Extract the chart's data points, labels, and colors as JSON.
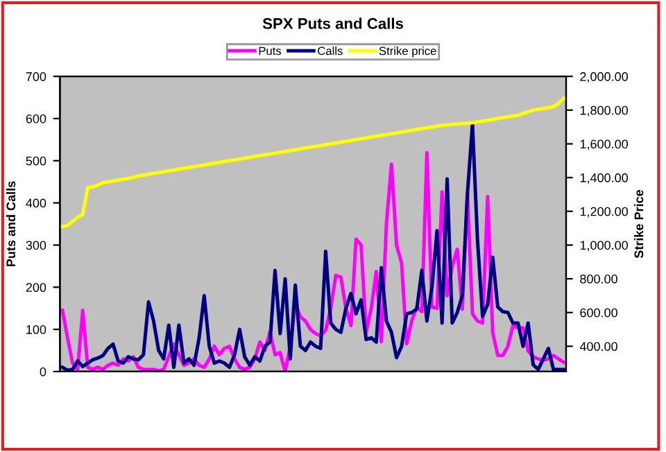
{
  "chart_data": {
    "type": "line",
    "title": "SPX Puts and Calls",
    "ylabel": "Puts and Calls",
    "y2label": "Strike Price",
    "categories": [
      null,
      null,
      null,
      null,
      null,
      null,
      null,
      null,
      null,
      null,
      null,
      null,
      null,
      null,
      null,
      null,
      null,
      null,
      null,
      null,
      null,
      null,
      null,
      null,
      null,
      null,
      null,
      null,
      null,
      null,
      null,
      null,
      null,
      null,
      null,
      null,
      null,
      null,
      null,
      null,
      null,
      null,
      null,
      null,
      null,
      null,
      null,
      null,
      null,
      null,
      null,
      null,
      null,
      null,
      null,
      null,
      null,
      null,
      null,
      null,
      null,
      null,
      null,
      null,
      null,
      null,
      null,
      null,
      null,
      null,
      null,
      null,
      null,
      null,
      null,
      null,
      null,
      null,
      null,
      null,
      null,
      null,
      null,
      null,
      null,
      null,
      null,
      null,
      null,
      null,
      null,
      null,
      null,
      null,
      null,
      null,
      null,
      null,
      null,
      null
    ],
    "series": [
      {
        "name": "Puts",
        "color": "#ff00ff",
        "values": [
          145,
          80,
          20,
          5,
          145,
          10,
          5,
          10,
          5,
          15,
          20,
          15,
          30,
          25,
          35,
          10,
          5,
          5,
          5,
          2,
          5,
          35,
          65,
          40,
          15,
          20,
          30,
          15,
          10,
          30,
          60,
          40,
          55,
          60,
          30,
          10,
          5,
          10,
          30,
          70,
          50,
          95,
          40,
          45,
          0,
          60,
          160,
          130,
          120,
          100,
          90,
          85,
          98,
          150,
          228,
          224,
          150,
          109,
          314,
          300,
          93,
          150,
          237,
          71,
          350,
          492,
          300,
          257,
          66,
          120,
          153,
          142,
          519,
          153,
          150,
          426,
          180,
          250,
          290,
          148,
          426,
          137,
          120,
          115,
          415,
          93,
          38,
          38,
          60,
          109,
          104,
          104,
          49,
          35,
          30,
          27,
          30,
          38,
          30,
          22
        ]
      },
      {
        "name": "Calls",
        "color": "#000080",
        "values": [
          10,
          3,
          5,
          25,
          12,
          20,
          28,
          32,
          38,
          55,
          65,
          25,
          20,
          35,
          30,
          28,
          40,
          165,
          120,
          50,
          30,
          110,
          10,
          110,
          20,
          30,
          15,
          80,
          180,
          60,
          20,
          25,
          20,
          10,
          40,
          100,
          35,
          15,
          35,
          25,
          60,
          70,
          240,
          90,
          220,
          30,
          205,
          60,
          50,
          70,
          60,
          55,
          285,
          115,
          100,
          93,
          150,
          185,
          137,
          170,
          76,
          80,
          70,
          246,
          120,
          93,
          33,
          60,
          137,
          140,
          148,
          240,
          120,
          200,
          334,
          115,
          457,
          115,
          140,
          180,
          420,
          587,
          311,
          131,
          159,
          271,
          153,
          142,
          140,
          115,
          115,
          60,
          115,
          16,
          5,
          30,
          55,
          5,
          5,
          5
        ]
      },
      {
        "name": "Strike price",
        "color": "#ffff00",
        "axis": "y2",
        "values": [
          1110,
          1115,
          1140,
          1165,
          1180,
          1340,
          1345,
          1355,
          1370,
          1375,
          1380,
          1385,
          1390,
          1395,
          1400,
          1410,
          1415,
          1420,
          1425,
          1430,
          1435,
          1440,
          1445,
          1450,
          1455,
          1460,
          1465,
          1470,
          1475,
          1480,
          1485,
          1490,
          1495,
          1500,
          1505,
          1510,
          1515,
          1520,
          1525,
          1530,
          1535,
          1540,
          1545,
          1550,
          1555,
          1560,
          1565,
          1570,
          1575,
          1580,
          1585,
          1590,
          1595,
          1600,
          1605,
          1610,
          1615,
          1620,
          1625,
          1630,
          1635,
          1640,
          1645,
          1650,
          1655,
          1660,
          1665,
          1670,
          1675,
          1680,
          1685,
          1690,
          1695,
          1700,
          1705,
          1710,
          1712,
          1715,
          1718,
          1720,
          1722,
          1725,
          1730,
          1735,
          1740,
          1745,
          1750,
          1755,
          1760,
          1765,
          1770,
          1780,
          1790,
          1800,
          1805,
          1810,
          1815,
          1820,
          1840,
          1870
        ]
      }
    ],
    "ylim": [
      0,
      700
    ],
    "yticks": [
      0,
      100,
      200,
      300,
      400,
      500,
      600,
      700
    ],
    "y2lim": [
      250,
      2000
    ],
    "y2ticks": [
      {
        "value": 400,
        "label": "400.00"
      },
      {
        "value": 600,
        "label": "600.00"
      },
      {
        "value": 800,
        "label": "800.00"
      },
      {
        "value": 1000,
        "label": "1,000.00"
      },
      {
        "value": 1200,
        "label": "1,200.00"
      },
      {
        "value": 1400,
        "label": "1,400.00"
      },
      {
        "value": 1600,
        "label": "1,600.00"
      },
      {
        "value": 1800,
        "label": "1,800.00"
      },
      {
        "value": 2000,
        "label": "2,000.00"
      }
    ],
    "grid": false,
    "legend": "top",
    "marker": "none",
    "line_style": "solid"
  }
}
